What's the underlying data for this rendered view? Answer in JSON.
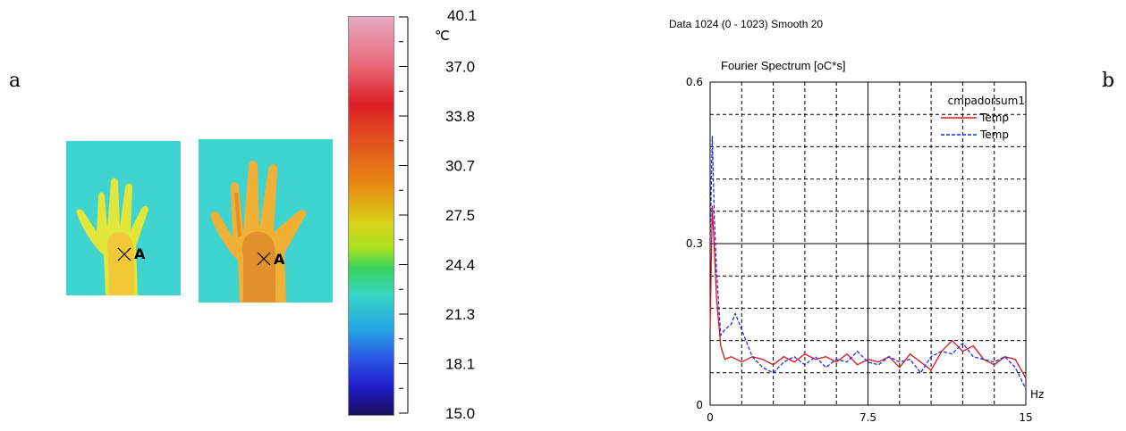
{
  "panel_labels": {
    "a": "a",
    "b": "b"
  },
  "thermal_images": {
    "marker_label": "A",
    "background_color": "#3fd4cf"
  },
  "colorbar": {
    "unit": "℃",
    "tick_labels": [
      "40.1",
      "37.0",
      "33.8",
      "30.7",
      "27.5",
      "24.4",
      "21.3",
      "18.1",
      "15.0"
    ]
  },
  "spectrum": {
    "header": "Data 1024 (0 - 1023)  Smooth 20",
    "title": "Fourier Spectrum [oC*s]",
    "legend_title": "cmpadorsum1",
    "x_unit": "Hz"
  },
  "chart_data": {
    "type": "line",
    "title": "Fourier Spectrum [oC*s]",
    "xlabel": "Hz",
    "ylabel": "",
    "xlim": [
      0,
      15
    ],
    "ylim": [
      0,
      0.6
    ],
    "x_ticks": [
      0,
      7.5,
      15
    ],
    "x_tick_labels": [
      "0",
      "7.5",
      "15"
    ],
    "y_ticks": [
      0,
      0.3,
      0.6
    ],
    "y_tick_labels": [
      "0",
      "0.3",
      "0.6"
    ],
    "grid": true,
    "legend_placement": "top-right",
    "series": [
      {
        "name": "Temp",
        "color": "#e0141e",
        "style": "solid",
        "x": [
          0.0,
          0.1,
          0.2,
          0.3,
          0.5,
          0.7,
          1.0,
          1.5,
          2.0,
          2.5,
          3.0,
          3.5,
          4.0,
          4.5,
          5.0,
          5.5,
          6.0,
          6.5,
          7.0,
          7.5,
          8.0,
          8.5,
          9.0,
          9.5,
          10.0,
          10.5,
          11.0,
          11.5,
          12.0,
          12.5,
          13.0,
          13.5,
          14.0,
          14.5,
          15.0
        ],
        "y": [
          0.14,
          0.37,
          0.29,
          0.2,
          0.11,
          0.085,
          0.09,
          0.08,
          0.09,
          0.085,
          0.075,
          0.09,
          0.08,
          0.095,
          0.085,
          0.09,
          0.08,
          0.095,
          0.075,
          0.085,
          0.08,
          0.09,
          0.07,
          0.095,
          0.08,
          0.065,
          0.1,
          0.12,
          0.1,
          0.11,
          0.085,
          0.075,
          0.09,
          0.085,
          0.05
        ]
      },
      {
        "name": "Temp",
        "color": "#1e2fe6",
        "style": "dashed",
        "x": [
          0.0,
          0.1,
          0.2,
          0.3,
          0.5,
          0.7,
          1.0,
          1.2,
          1.5,
          2.0,
          2.5,
          3.0,
          3.5,
          4.0,
          4.5,
          5.0,
          5.5,
          6.0,
          6.5,
          7.0,
          7.5,
          8.0,
          8.5,
          9.0,
          9.5,
          10.0,
          10.5,
          11.0,
          11.5,
          12.0,
          12.5,
          13.0,
          13.5,
          14.0,
          14.5,
          15.0
        ],
        "y": [
          0.3,
          0.5,
          0.35,
          0.25,
          0.13,
          0.14,
          0.15,
          0.17,
          0.14,
          0.09,
          0.07,
          0.06,
          0.08,
          0.09,
          0.075,
          0.09,
          0.07,
          0.085,
          0.08,
          0.1,
          0.08,
          0.075,
          0.09,
          0.08,
          0.085,
          0.06,
          0.09,
          0.1,
          0.095,
          0.115,
          0.09,
          0.085,
          0.08,
          0.09,
          0.07,
          0.03
        ]
      }
    ]
  }
}
